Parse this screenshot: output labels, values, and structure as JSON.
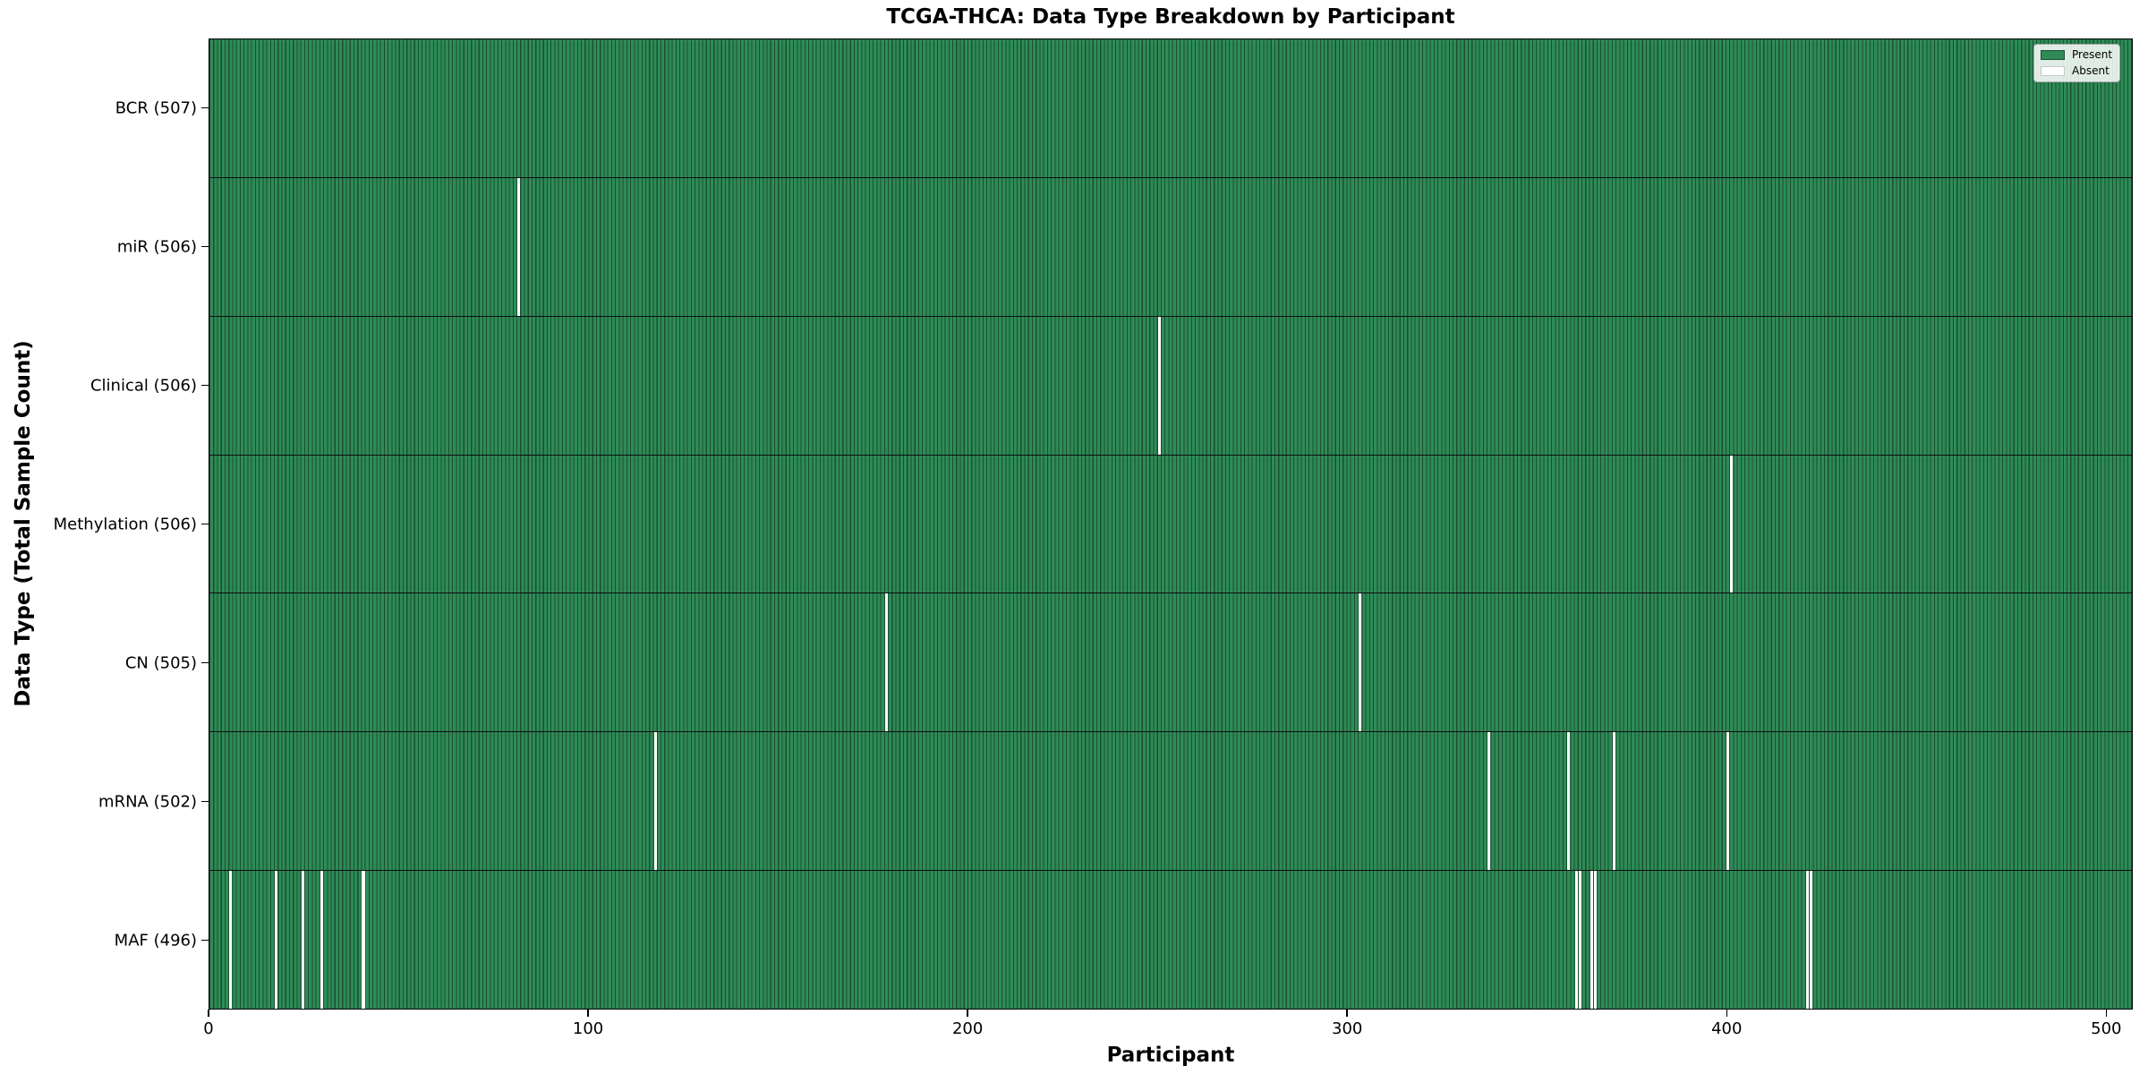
{
  "title": "TCGA-THCA: Data Type Breakdown by Participant",
  "x_axis_label": "Participant",
  "y_axis_label": "Data Type (Total Sample Count)",
  "legend": {
    "present_label": "Present",
    "absent_label": "Absent"
  },
  "colors": {
    "present_fill": "#2e8b57",
    "present_edge": "#1b4f31",
    "absent_fill": "#ffffff",
    "row_divider": "#0d0d0d",
    "absent_swatch_edge": "#c8c8c8"
  },
  "chart_data": {
    "type": "heatmap",
    "title": "TCGA-THCA: Data Type Breakdown by Participant",
    "xlabel": "Participant",
    "ylabel": "Data Type (Total Sample Count)",
    "legend_entries": [
      "Present",
      "Absent"
    ],
    "legend_position": "upper right",
    "n_participants": 507,
    "xlim": [
      0,
      507
    ],
    "x_ticks": [
      0,
      100,
      200,
      300,
      400,
      500
    ],
    "grid": false,
    "rows": [
      {
        "label": "BCR (507)",
        "data_type": "BCR",
        "present_count": 507,
        "absent_participants": []
      },
      {
        "label": "miR (506)",
        "data_type": "miR",
        "present_count": 506,
        "absent_participants": [
          81
        ]
      },
      {
        "label": "Clinical (506)",
        "data_type": "Clinical",
        "present_count": 506,
        "absent_participants": [
          250
        ]
      },
      {
        "label": "Methylation (506)",
        "data_type": "Methylation",
        "present_count": 506,
        "absent_participants": [
          401
        ]
      },
      {
        "label": "CN (505)",
        "data_type": "CN",
        "present_count": 505,
        "absent_participants": [
          178,
          303
        ]
      },
      {
        "label": "mRNA (502)",
        "data_type": "mRNA",
        "present_count": 502,
        "absent_participants": [
          117,
          337,
          358,
          370,
          400
        ]
      },
      {
        "label": "MAF (496)",
        "data_type": "MAF",
        "present_count": 496,
        "absent_participants": [
          5,
          17,
          24,
          29,
          40,
          360,
          361,
          364,
          365,
          421,
          422
        ]
      }
    ]
  }
}
